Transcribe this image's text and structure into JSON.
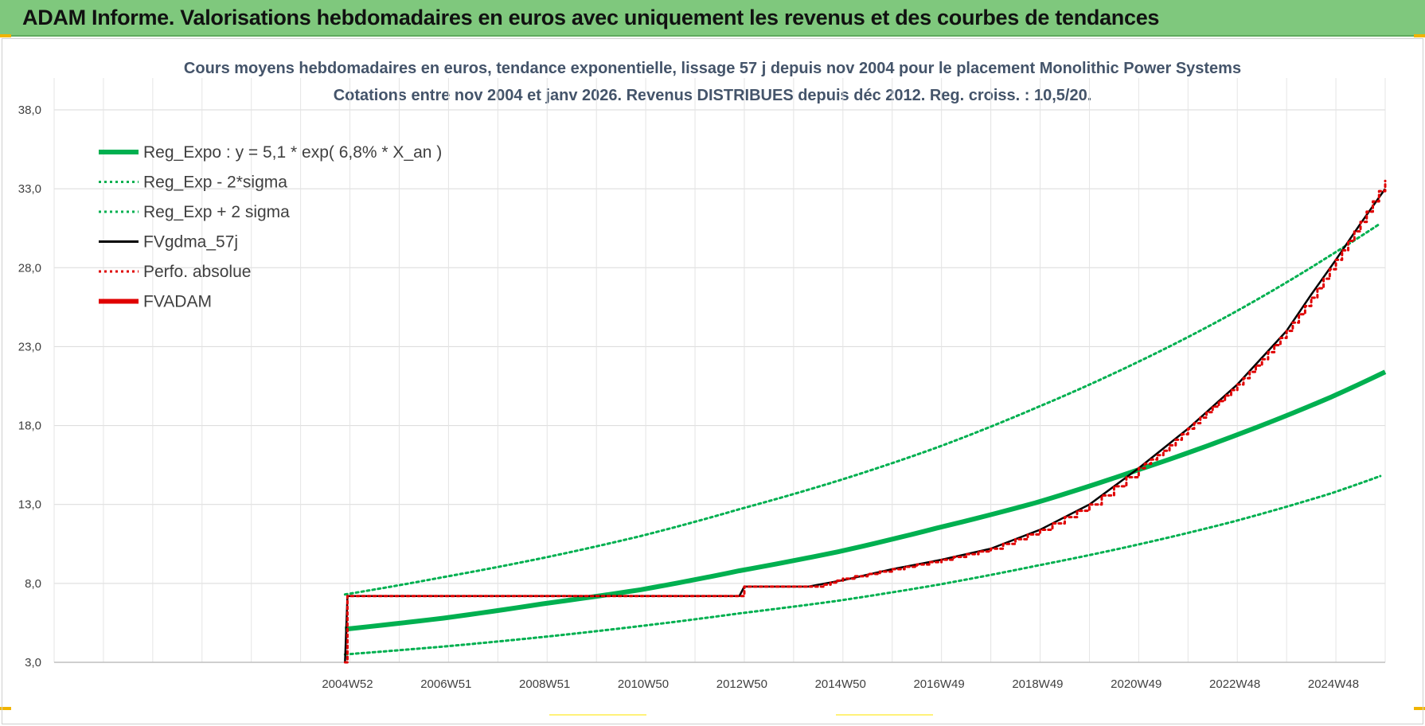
{
  "header": {
    "title": "ADAM Informe. Valorisations hebdomadaires en euros avec uniquement les revenus et des courbes de tendances"
  },
  "colors": {
    "header_bg": "#7fc87d",
    "reg_expo": "#00b050",
    "fvgdma": "#000000",
    "fvadam": "#e00000",
    "perfo": "#e00000",
    "grid": "#d9d9d9",
    "axis_text": "#404040",
    "title_text": "#44546a"
  },
  "chart_data": {
    "type": "line",
    "title_line1": "Cours moyens hebdomadaires en euros, tendance exponentielle, lissage 57 j depuis nov 2004 pour le placement Monolithic Power Systems",
    "title_line2": "Cotations entre nov 2004 et janv 2026. Revenus DISTRIBUES depuis déc 2012. Reg. croiss. : 10,5/20.",
    "ylim": [
      3.0,
      38.0
    ],
    "yticks": [
      "3,0",
      "8,0",
      "13,0",
      "18,0",
      "23,0",
      "28,0",
      "33,0",
      "38,0"
    ],
    "xlim": [
      "1998W52",
      "2026W02"
    ],
    "xticks": [
      "2004W52",
      "2006W51",
      "2008W51",
      "2010W50",
      "2012W50",
      "2014W50",
      "2016W49",
      "2018W49",
      "2020W49",
      "2022W48",
      "2024W48"
    ],
    "legend_position": "top-left",
    "legend": [
      {
        "label": "Reg_Expo : y = 5,1 * exp( 6,8% *  X_an )",
        "style": "solid-thick",
        "color": "#00b050"
      },
      {
        "label": "Reg_Exp - 2*sigma",
        "style": "dotted",
        "color": "#00b050"
      },
      {
        "label": "Reg_Exp + 2 sigma",
        "style": "dotted",
        "color": "#00b050"
      },
      {
        "label": "FVgdma_57j",
        "style": "solid",
        "color": "#000000"
      },
      {
        "label": "Perfo. absolue",
        "style": "dotted",
        "color": "#e00000"
      },
      {
        "label": "FVADAM",
        "style": "solid-thick",
        "color": "#e00000"
      }
    ],
    "series": [
      {
        "name": "Reg_Expo : y = 5,1 * exp( 6,8% *  X_an )",
        "x": [
          2004.9,
          2006.9,
          2008.9,
          2010.9,
          2012.9,
          2014.9,
          2016.9,
          2018.9,
          2020.9,
          2022.9,
          2024.9,
          2026.0
        ],
        "y": [
          5.1,
          5.8,
          6.7,
          7.6,
          8.8,
          10.0,
          11.5,
          13.1,
          15.1,
          17.3,
          19.8,
          21.4
        ]
      },
      {
        "name": "Reg_Exp - 2*sigma",
        "x": [
          2004.9,
          2006.9,
          2008.9,
          2010.9,
          2012.9,
          2014.9,
          2016.9,
          2018.9,
          2020.9,
          2022.9,
          2024.9,
          2025.9
        ],
        "y": [
          3.5,
          4.0,
          4.6,
          5.3,
          6.1,
          6.9,
          7.9,
          9.1,
          10.4,
          11.9,
          13.7,
          14.8
        ]
      },
      {
        "name": "Reg_Exp + 2 sigma",
        "x": [
          2004.9,
          2006.9,
          2008.9,
          2010.9,
          2012.9,
          2014.9,
          2016.9,
          2018.9,
          2020.9,
          2022.9,
          2024.9,
          2025.9
        ],
        "y": [
          7.3,
          8.4,
          9.6,
          11.0,
          12.7,
          14.5,
          16.6,
          19.1,
          21.9,
          25.1,
          28.8,
          30.8
        ]
      },
      {
        "name": "FVgdma_57j",
        "x": [
          2004.9,
          2004.95,
          2012.0,
          2012.9,
          2013.0,
          2014.3,
          2015.0,
          2016.0,
          2017.0,
          2018.0,
          2019.0,
          2020.0,
          2021.0,
          2022.0,
          2023.0,
          2024.0,
          2024.5,
          2025.0,
          2025.5,
          2026.0
        ],
        "y": [
          3.0,
          7.2,
          7.2,
          7.2,
          7.8,
          7.8,
          8.2,
          8.9,
          9.5,
          10.2,
          11.4,
          13.0,
          15.3,
          17.8,
          20.6,
          24.0,
          26.3,
          28.5,
          30.8,
          33.0
        ]
      },
      {
        "name": "FVADAM",
        "x": [
          2004.9,
          2004.95,
          2012.9,
          2013.0,
          2014.5,
          2015.0,
          2016.0,
          2017.0,
          2018.0,
          2019.0,
          2020.0,
          2021.0,
          2021.5,
          2022.0,
          2022.5,
          2023.0,
          2023.5,
          2024.0,
          2024.5,
          2025.0,
          2025.5,
          2026.0
        ],
        "y": [
          3.0,
          7.2,
          7.2,
          7.8,
          7.8,
          8.3,
          8.9,
          9.5,
          10.2,
          11.4,
          13.0,
          15.3,
          16.4,
          17.8,
          19.2,
          20.6,
          22.2,
          24.0,
          26.1,
          28.5,
          30.9,
          33.5
        ]
      }
    ]
  }
}
